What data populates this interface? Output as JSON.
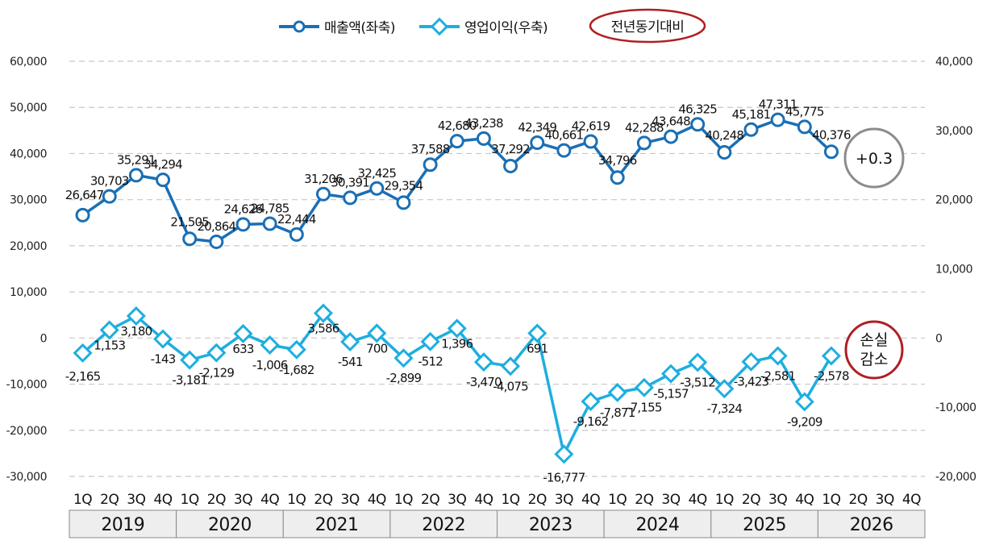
{
  "chart_data": {
    "type": "line",
    "legend": {
      "placement": "top-center",
      "items": [
        "매출액(좌축)",
        "영업이익(우축)",
        "전년동기대비"
      ]
    },
    "quarters": [
      "1Q",
      "2Q",
      "3Q",
      "4Q",
      "1Q",
      "2Q",
      "3Q",
      "4Q",
      "1Q",
      "2Q",
      "3Q",
      "4Q",
      "1Q",
      "2Q",
      "3Q",
      "4Q",
      "1Q",
      "2Q",
      "3Q",
      "4Q",
      "1Q",
      "2Q",
      "3Q",
      "4Q",
      "1Q",
      "2Q",
      "3Q",
      "4Q",
      "1Q",
      "2Q",
      "3Q",
      "4Q"
    ],
    "years": [
      "2019",
      "2020",
      "2021",
      "2022",
      "2023",
      "2024",
      "2025",
      "2026"
    ],
    "y_left": {
      "min": -30000,
      "max": 60000,
      "ticks": [
        "-30,000",
        "-20,000",
        "-10,000",
        "0",
        "10,000",
        "20,000",
        "30,000",
        "40,000",
        "50,000",
        "60,000"
      ]
    },
    "y_right": {
      "min": -20000,
      "max": 40000,
      "ticks": [
        "-20,000",
        "-10,000",
        "0",
        "10,000",
        "20,000",
        "30,000",
        "40,000"
      ]
    },
    "grid": true,
    "series": [
      {
        "name": "매출액(좌축)",
        "axis": "left",
        "color": "#1a6fb5",
        "values": [
          26647,
          30703,
          35291,
          34294,
          21505,
          20864,
          24626,
          24785,
          22444,
          31206,
          30391,
          32425,
          29354,
          37588,
          42680,
          43238,
          37292,
          42349,
          40661,
          42619,
          34796,
          42288,
          43648,
          46325,
          40248,
          45181,
          47311,
          45775,
          40376
        ],
        "labels": [
          "26,647",
          "30,703",
          "35,291",
          "34,294",
          "21,505",
          "20,864",
          "24,626",
          "24,785",
          "22,444",
          "31,206",
          "30,391",
          "32,425",
          "29,354",
          "37,588",
          "42,680",
          "43,238",
          "37,292",
          "42,349",
          "40,661",
          "42,619",
          "34,796",
          "42,288",
          "43,648",
          "46,325",
          "40,248",
          "45,181",
          "47,311",
          "45,775",
          "40,376"
        ]
      },
      {
        "name": "영업이익(우축)",
        "axis": "right",
        "color": "#1eaee0",
        "values": [
          -2165,
          1153,
          3180,
          -143,
          -3181,
          -2129,
          633,
          -1006,
          -1682,
          3586,
          -541,
          700,
          -2899,
          -512,
          1396,
          -3470,
          -4075,
          691,
          -16777,
          -9162,
          -7871,
          -7155,
          -5157,
          -3512,
          -7324,
          -3423,
          -2581,
          -9209,
          -2578
        ],
        "labels": [
          "-2,165",
          "1,153",
          "3,180",
          "-143",
          "-3,181",
          "-2,129",
          "633",
          "-1,006",
          "-1,682",
          "3,586",
          "-541",
          "700",
          "-2,899",
          "-512",
          "1,396",
          "-3,470",
          "-4,075",
          "691",
          "-16,777",
          "-9,162",
          "-7,871",
          "-7,155",
          "-5,157",
          "-3,512",
          "-7,324",
          "-3,423",
          "-2,581",
          "-9,209",
          "-2,578"
        ]
      }
    ],
    "annotations": [
      {
        "text": "+0.3",
        "color": "#8c8c8c"
      },
      {
        "text_lines": [
          "손실",
          "감소"
        ],
        "color": "#b01e23"
      }
    ]
  }
}
